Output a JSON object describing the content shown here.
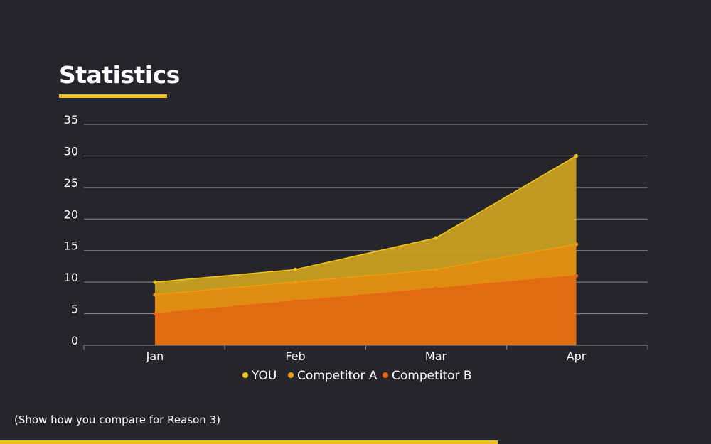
{
  "header": {
    "title": "Statistics"
  },
  "caption": "(Show how you compare for Reason 3)",
  "colors": {
    "background": "#25262b",
    "accent": "#f0c020",
    "grid": "#8a8b90"
  },
  "chart_data": {
    "type": "area",
    "categories": [
      "Jan",
      "Feb",
      "Mar",
      "Apr"
    ],
    "series": [
      {
        "name": "YOU",
        "values": [
          10,
          12,
          17,
          30
        ],
        "color": "#f5c518",
        "fill": "#c8a020"
      },
      {
        "name": "Competitor A",
        "values": [
          8,
          10,
          12,
          16
        ],
        "color": "#f29a10",
        "fill": "#e08c10"
      },
      {
        "name": "Competitor B",
        "values": [
          5,
          7,
          9,
          11
        ],
        "color": "#e8651a",
        "fill": "#e06a10"
      }
    ],
    "y_ticks": [
      0,
      5,
      10,
      15,
      20,
      25,
      30,
      35
    ],
    "ylim": [
      0,
      35
    ],
    "grid": true,
    "legend_position": "bottom"
  }
}
